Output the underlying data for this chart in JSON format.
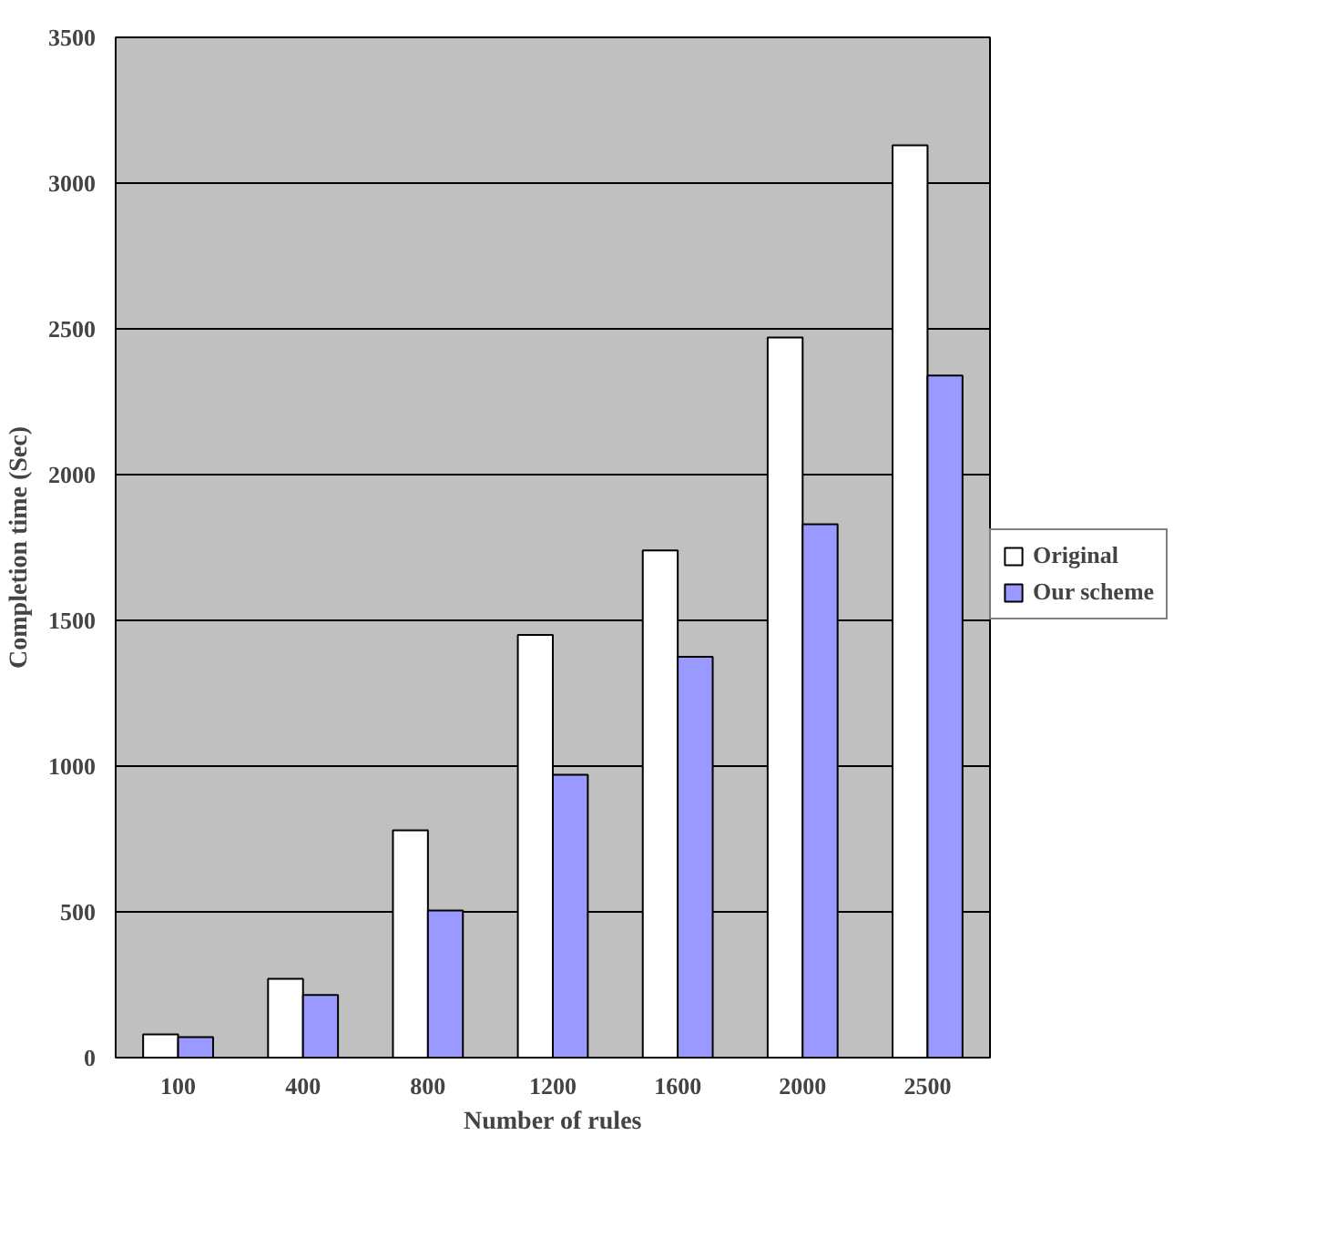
{
  "chart_data": {
    "type": "bar",
    "xlabel": "Number of rules",
    "ylabel": "Completion time (Sec)",
    "categories": [
      "100",
      "400",
      "800",
      "1200",
      "1600",
      "2000",
      "2500"
    ],
    "series": [
      {
        "name": "Original",
        "color": "#ffffff",
        "values": [
          80,
          270,
          780,
          1450,
          1740,
          2470,
          3130
        ]
      },
      {
        "name": "Our scheme",
        "color": "#9999ff",
        "values": [
          70,
          215,
          505,
          970,
          1375,
          1830,
          2340
        ]
      }
    ],
    "ylim": [
      0,
      3500
    ],
    "yticks": [
      0,
      500,
      1000,
      1500,
      2000,
      2500,
      3000,
      3500
    ],
    "grid": "y",
    "legend": "right"
  }
}
